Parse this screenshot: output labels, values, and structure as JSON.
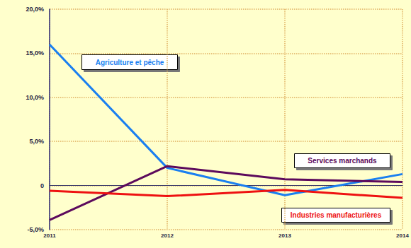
{
  "chart_data": {
    "type": "line",
    "categories": [
      "2011",
      "2012",
      "2013",
      "2014"
    ],
    "series": [
      {
        "name": "Agriculture et pêche",
        "color": "#1a7ff0",
        "values": [
          16.0,
          2.0,
          -1.1,
          1.3
        ]
      },
      {
        "name": "Services marchands",
        "color": "#5c0a5c",
        "values": [
          -3.9,
          2.2,
          0.7,
          0.4
        ]
      },
      {
        "name": "Industries manufacturières",
        "color": "#ee1111",
        "values": [
          -0.6,
          -1.2,
          -0.5,
          -1.4
        ]
      }
    ],
    "ylim": [
      -5,
      20
    ],
    "yticks": [
      {
        "value": -5,
        "label": "-5,0%"
      },
      0,
      {
        "value": 5,
        "label": "5,0%"
      },
      {
        "value": 10,
        "label": "10,0%"
      },
      {
        "value": 15,
        "label": "15,0%"
      },
      {
        "value": 20,
        "label": "20,0%"
      }
    ],
    "grid": true
  }
}
